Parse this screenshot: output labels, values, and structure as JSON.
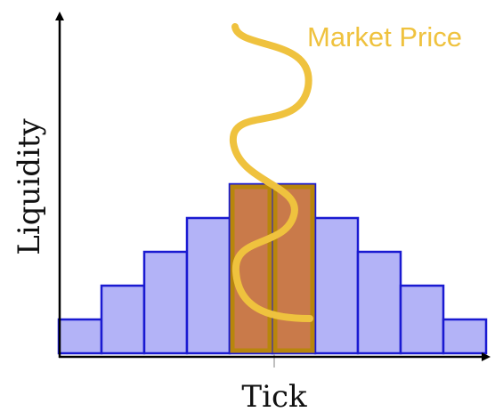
{
  "labels": {
    "x_axis": "Tick",
    "y_axis": "Liquidity",
    "curve": "Market Price"
  },
  "liquidity_levels": [
    1,
    2,
    3,
    4,
    5,
    5,
    4,
    3,
    2,
    1
  ],
  "highlighted_indices": [
    4,
    5
  ],
  "colors": {
    "bar_fill": "#b3b3f7",
    "bar_stroke": "#1a1ad1",
    "highlight_fill": "#c97a4a",
    "highlight_stroke": "#b8860b",
    "curve": "#efc23e",
    "axis": "#000000",
    "tick_marker": "#aaaaaa"
  }
}
